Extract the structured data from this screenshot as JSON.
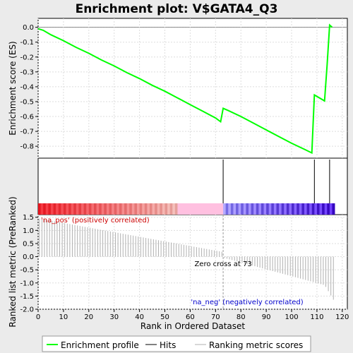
{
  "chart_data": {
    "type": "line",
    "title": "Enrichment plot: V$GATA4_Q3",
    "n_genes": 117,
    "colors": {
      "enrichment_line": "#00ff00",
      "hit_line": "#000000",
      "metric_bar": "#b0b0b0",
      "pos_label": "#cc0000",
      "neg_label": "#0000cc",
      "zero_line": "#a0a0a0",
      "grid": "#dddddd"
    },
    "enrichment_panel": {
      "ylabel": "Enrichment score (ES)",
      "ylim": [
        -0.88,
        0.06
      ],
      "yticks": [
        "0.0",
        "-0.1",
        "-0.2",
        "-0.3",
        "-0.4",
        "-0.5",
        "-0.6",
        "-0.7",
        "-0.8"
      ],
      "grid": true,
      "series": [
        {
          "x": [
            0,
            2,
            5,
            10,
            15,
            20,
            25,
            30,
            35,
            40,
            45,
            50,
            55,
            60,
            65,
            70,
            72,
            73,
            75,
            80,
            85,
            90,
            95,
            100,
            105,
            108,
            109,
            113,
            114,
            115,
            116
          ],
          "y": [
            -0.01,
            -0.02,
            -0.05,
            -0.09,
            -0.135,
            -0.175,
            -0.22,
            -0.26,
            -0.305,
            -0.345,
            -0.39,
            -0.43,
            -0.475,
            -0.52,
            -0.565,
            -0.61,
            -0.635,
            -0.545,
            -0.56,
            -0.6,
            -0.645,
            -0.69,
            -0.735,
            -0.78,
            -0.82,
            -0.845,
            -0.455,
            -0.495,
            -0.255,
            0.015,
            0.0
          ]
        }
      ]
    },
    "hits_panel": {
      "hits": [
        73,
        109,
        115
      ]
    },
    "ranking_panel": {
      "ylabel": "Ranked list metric (PreRanked)",
      "xlabel": "Rank in Ordered Dataset",
      "ylim": [
        -2.0,
        1.6
      ],
      "yticks": [
        "1.5",
        "1.0",
        "0.5",
        "0.0",
        "-0.5",
        "-1.0",
        "-1.5",
        "-2.0"
      ],
      "xticks": [
        "0",
        "10",
        "20",
        "30",
        "40",
        "50",
        "60",
        "70",
        "80",
        "90",
        "100",
        "110",
        "120"
      ],
      "xlim": [
        0,
        122
      ],
      "zero_cross_label": "Zero cross at 73",
      "pos_label": "'na_pos' (positively correlated)",
      "neg_label": "'na_neg' (negatively correlated)",
      "grid": true
    },
    "legend": {
      "placement": "bottom",
      "entries": [
        {
          "label": "Enrichment profile",
          "color": "#00ff00"
        },
        {
          "label": "Hits",
          "color": "#000000"
        },
        {
          "label": "Ranking metric scores",
          "color": "#b0b0b0"
        }
      ]
    }
  }
}
